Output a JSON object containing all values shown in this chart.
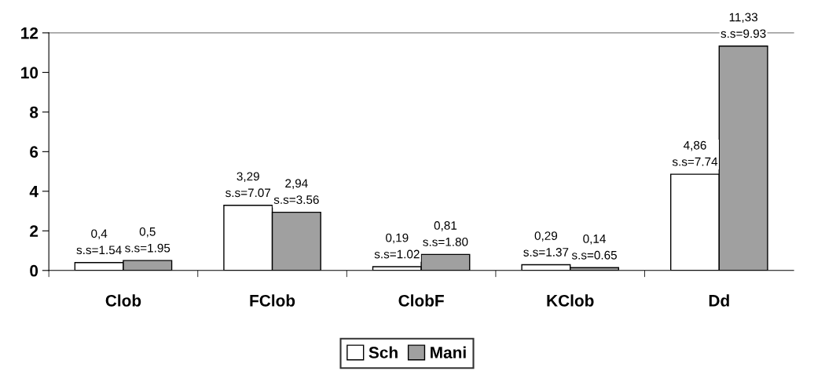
{
  "chart_data": {
    "type": "bar",
    "categories": [
      "Clob",
      "FClob",
      "ClobF",
      "KClob",
      "Dd"
    ],
    "series": [
      {
        "name": "Sch",
        "color": "#ffffff",
        "values": [
          0.4,
          3.29,
          0.19,
          0.29,
          4.86
        ],
        "value_labels": [
          "0,4\ns.s=1.54",
          "3,29\ns.s=7.07",
          "0,19\ns.s=1.02",
          "0,29\ns.s=1.37",
          "4,86\ns.s=7.74"
        ]
      },
      {
        "name": "Mani",
        "color": "#a0a0a0",
        "values": [
          0.5,
          2.94,
          0.81,
          0.14,
          11.33
        ],
        "value_labels": [
          "0,5\ns.s=1.95",
          "2,94\ns.s=3.56",
          "0,81\ns.s=1.80",
          "0,14\ns.s=0.65",
          "11,33\ns.s=9.93"
        ]
      }
    ],
    "ylim": [
      0,
      12
    ],
    "yticks": [
      0,
      2,
      4,
      6,
      8,
      10,
      12
    ],
    "grid": false,
    "legend": "bottom"
  }
}
